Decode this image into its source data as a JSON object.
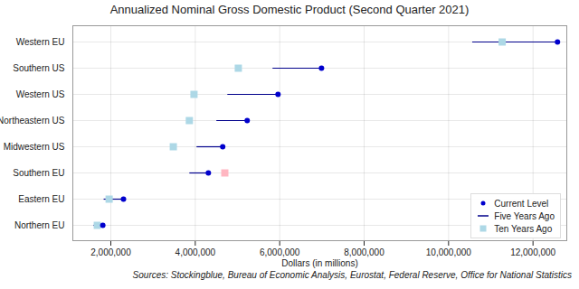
{
  "chart_data": {
    "type": "dumbbell",
    "orientation": "horizontal",
    "title": "Annualized Nominal Gross Domestic Product (Second Quarter 2021)",
    "x_label": "Dollars (in millions)",
    "caption": "Sources: Stockingblue, Bureau of Economic Analysis, Eurostat, Federal Reserve, Office for National Statistics",
    "categories": [
      "Western EU",
      "Southern US",
      "Western US",
      "Northeastern US",
      "Midwestern US",
      "Southern EU",
      "Eastern EU",
      "Northern EU"
    ],
    "series": [
      {
        "name": "Current Level",
        "type": "dot",
        "marker": "circle",
        "color": "#0000cd",
        "values": [
          12580000,
          6990000,
          5960000,
          5230000,
          4650000,
          4310000,
          2300000,
          1810000
        ]
      },
      {
        "name": "Five Years Ago",
        "type": "line",
        "color": "#00008b",
        "values": [
          10560000,
          5830000,
          4760000,
          4500000,
          4030000,
          3860000,
          1830000,
          1590000
        ]
      },
      {
        "name": "Ten Years Ago",
        "type": "dot",
        "marker": "square",
        "colors": [
          "#add8e6",
          "#add8e6",
          "#add8e6",
          "#add8e6",
          "#add8e6",
          "#ffb6c1",
          "#add8e6",
          "#add8e6"
        ],
        "values": [
          11270000,
          5020000,
          3970000,
          3860000,
          3480000,
          4700000,
          1960000,
          1680000
        ]
      }
    ],
    "xlim": [
      1100000,
      12800000
    ],
    "xticks": [
      {
        "value": 2000000,
        "label": "2,000,000"
      },
      {
        "value": 4000000,
        "label": "4,000,000"
      },
      {
        "value": 6000000,
        "label": "6,000,000"
      },
      {
        "value": 8000000,
        "label": "8,000,000"
      },
      {
        "value": 10000000,
        "label": "10,000,000"
      },
      {
        "value": 12000000,
        "label": "12,000,000"
      }
    ],
    "grid": true,
    "legend": "bottom-right"
  }
}
